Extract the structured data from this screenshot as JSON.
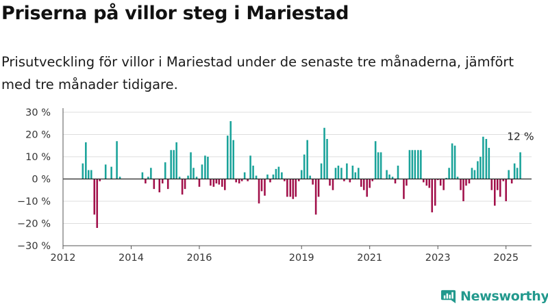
{
  "title": "Priserna på villor steg i Mariestad",
  "subtitle": "Prisutveckling för villor i Mariestad under de senaste tre månaderna, jämfört med tre månader tidigare.",
  "brand": {
    "name": "Newsworthy",
    "logo_icon": "bar-chart-logo-icon"
  },
  "colors": {
    "positive": "#1aa39a",
    "negative": "#a1104a",
    "grid": "#dddddd",
    "zero_line": "#222222"
  },
  "chart_data": {
    "type": "bar",
    "xlabel": "",
    "ylabel": "",
    "ylim": [
      -30,
      30
    ],
    "xlim": [
      2012,
      2025.75
    ],
    "yticks": [
      30,
      20,
      10,
      0,
      -10,
      -20,
      -30
    ],
    "ytick_labels": [
      "30 %",
      "20 %",
      "10 %",
      "0 %",
      "−10 %",
      "−20 %",
      "−30 %"
    ],
    "xticks": [
      2012,
      2014,
      2016,
      2019,
      2021,
      2023,
      2025
    ],
    "xtick_labels": [
      "2012",
      "2014",
      "2016",
      "2019",
      "2021",
      "2023",
      "2025"
    ],
    "grid": true,
    "last_value_label": "12 %",
    "series": [
      {
        "x": [
          2012.58,
          2012.67,
          2012.75,
          2012.83,
          2012.92,
          2013.0,
          2013.08,
          2013.25,
          2013.42,
          2013.58,
          2013.67,
          2014.33,
          2014.42,
          2014.5,
          2014.58,
          2014.67,
          2014.83,
          2014.92,
          2015.0,
          2015.08,
          2015.17,
          2015.25,
          2015.33,
          2015.42,
          2015.5,
          2015.58,
          2015.67,
          2015.75,
          2015.83,
          2015.92,
          2016.0,
          2016.08,
          2016.17,
          2016.25,
          2016.33,
          2016.42,
          2016.5,
          2016.58,
          2016.67,
          2016.75,
          2016.83,
          2016.92,
          2017.0,
          2017.08,
          2017.17,
          2017.25,
          2017.33,
          2017.42,
          2017.5,
          2017.58,
          2017.67,
          2017.75,
          2017.83,
          2017.92,
          2018.0,
          2018.08,
          2018.17,
          2018.25,
          2018.33,
          2018.42,
          2018.5,
          2018.58,
          2018.67,
          2018.75,
          2018.83,
          2018.92,
          2019.0,
          2019.08,
          2019.17,
          2019.25,
          2019.33,
          2019.42,
          2019.5,
          2019.58,
          2019.67,
          2019.75,
          2019.83,
          2019.92,
          2020.0,
          2020.08,
          2020.17,
          2020.25,
          2020.33,
          2020.42,
          2020.5,
          2020.58,
          2020.67,
          2020.75,
          2020.83,
          2020.92,
          2021.0,
          2021.08,
          2021.17,
          2021.25,
          2021.33,
          2021.42,
          2021.5,
          2021.58,
          2021.67,
          2021.75,
          2021.83,
          2021.92,
          2022.0,
          2022.08,
          2022.17,
          2022.25,
          2022.33,
          2022.42,
          2022.5,
          2022.58,
          2022.67,
          2022.75,
          2022.83,
          2022.92,
          2023.0,
          2023.08,
          2023.17,
          2023.25,
          2023.33,
          2023.42,
          2023.5,
          2023.58,
          2023.67,
          2023.75,
          2023.83,
          2023.92,
          2024.0,
          2024.08,
          2024.17,
          2024.25,
          2024.33,
          2024.42,
          2024.5,
          2024.58,
          2024.67,
          2024.75,
          2024.83,
          2024.92,
          2025.0,
          2025.08,
          2025.17,
          2025.25,
          2025.33,
          2025.42
        ],
        "y": [
          7,
          16.5,
          4,
          4,
          -16,
          -22,
          -1,
          6.5,
          5.5,
          17,
          1,
          3,
          -2,
          1,
          5,
          -4.5,
          -6,
          -2,
          7.5,
          -4.5,
          13,
          13,
          16.5,
          1,
          -7,
          -4.5,
          1.5,
          12,
          5,
          1,
          -3.5,
          6.5,
          10.5,
          10,
          -3,
          -3.5,
          -2,
          -2.5,
          -3.5,
          -5,
          19.5,
          26,
          17.5,
          -1.5,
          -2,
          -1,
          3,
          -1,
          10.5,
          6,
          1.5,
          -11,
          -5.5,
          -7.5,
          2,
          -1.5,
          2,
          4.5,
          5.5,
          3,
          -1,
          -8,
          -8,
          -9,
          -8,
          -1,
          4,
          11,
          17.5,
          1.5,
          -2.5,
          -16,
          -8,
          7,
          23,
          18,
          -3,
          -5,
          5,
          6,
          5,
          -1,
          7,
          -1.5,
          6,
          3,
          5,
          -3.5,
          -5,
          -8,
          -4,
          -1,
          17,
          12,
          12,
          0,
          4,
          2,
          1,
          -2,
          6,
          0,
          -9,
          -3,
          13,
          13,
          13,
          13,
          13,
          -1.5,
          -3,
          -4,
          -15,
          -12,
          -0.5,
          -3,
          -5,
          0.5,
          5,
          16,
          15,
          1,
          -5,
          -10,
          -3,
          -2,
          5,
          4,
          8,
          10,
          19,
          18,
          14,
          -5,
          -12,
          -5,
          -8,
          -1,
          -10,
          4,
          -2,
          7,
          5,
          12
        ]
      }
    ]
  }
}
